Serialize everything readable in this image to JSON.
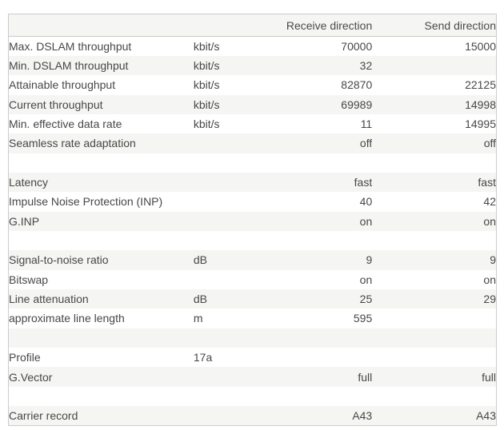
{
  "table": {
    "headers": {
      "label": "",
      "unit": "",
      "receive": "Receive direction",
      "send": "Send direction"
    },
    "rows": [
      {
        "label": "Max. DSLAM throughput",
        "unit": "kbit/s",
        "receive": "70000",
        "send": "15000"
      },
      {
        "label": "Min. DSLAM throughput",
        "unit": "kbit/s",
        "receive": "32",
        "send": ""
      },
      {
        "label": "Attainable throughput",
        "unit": "kbit/s",
        "receive": "82870",
        "send": "22125"
      },
      {
        "label": "Current throughput",
        "unit": "kbit/s",
        "receive": "69989",
        "send": "14998"
      },
      {
        "label": "Min. effective data rate",
        "unit": "kbit/s",
        "receive": "11",
        "send": "14995"
      },
      {
        "label": "Seamless rate adaptation",
        "unit": "",
        "receive": "off",
        "send": "off"
      },
      {
        "label": "",
        "unit": "",
        "receive": "",
        "send": ""
      },
      {
        "label": "Latency",
        "unit": "",
        "receive": "fast",
        "send": "fast"
      },
      {
        "label": "Impulse Noise Protection (INP)",
        "unit": "",
        "receive": "40",
        "send": "42"
      },
      {
        "label": "G.INP",
        "unit": "",
        "receive": "on",
        "send": "on"
      },
      {
        "label": "",
        "unit": "",
        "receive": "",
        "send": ""
      },
      {
        "label": "Signal-to-noise ratio",
        "unit": "dB",
        "receive": "9",
        "send": "9"
      },
      {
        "label": "Bitswap",
        "unit": "",
        "receive": "on",
        "send": "on"
      },
      {
        "label": "Line attenuation",
        "unit": "dB",
        "receive": "25",
        "send": "29"
      },
      {
        "label": "approximate line length",
        "unit": "m",
        "receive": "595",
        "send": ""
      },
      {
        "label": "",
        "unit": "",
        "receive": "",
        "send": ""
      },
      {
        "label": "Profile",
        "unit": "17a",
        "receive": "",
        "send": ""
      },
      {
        "label": "G.Vector",
        "unit": "",
        "receive": "full",
        "send": "full"
      },
      {
        "label": "",
        "unit": "",
        "receive": "",
        "send": ""
      },
      {
        "label": "Carrier record",
        "unit": "",
        "receive": "A43",
        "send": "A43"
      }
    ]
  },
  "colors": {
    "page_background": "#ffffff",
    "table_border": "#cccccc",
    "header_background": "#f5f5f4",
    "header_border_bottom": "#c9c9c5",
    "stripe_background": "#f5f5f4",
    "text": "#474747"
  }
}
